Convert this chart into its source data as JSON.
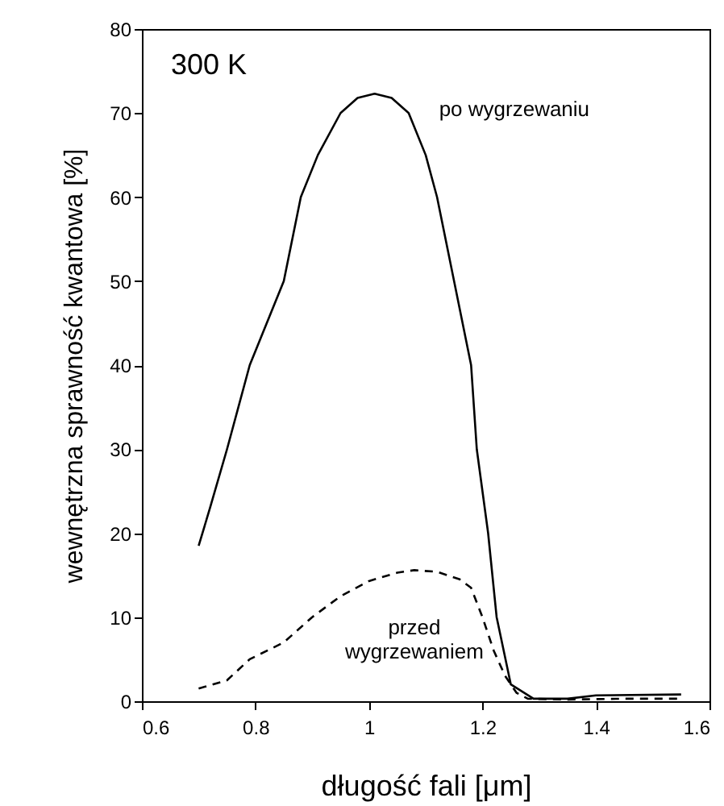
{
  "chart_data": {
    "type": "line",
    "xlabel": "długość fali [μm]",
    "ylabel": "wewnętrzna sprawność kwantowa [%]",
    "annotations": [
      "300 K"
    ],
    "xlim": [
      0.6,
      1.6
    ],
    "xticks": [
      0.6,
      0.8,
      1,
      1.2,
      1.4,
      1.6
    ],
    "ylim": [
      0,
      80
    ],
    "yticks": [
      0,
      10,
      20,
      30,
      40,
      50,
      60,
      70,
      80
    ],
    "grid": false,
    "legend": false,
    "marker": "none",
    "series": [
      {
        "name": "po wygrzewaniu",
        "color": "#000000",
        "line_style": "solid",
        "x": [
          0.7,
          0.72,
          0.75,
          0.79,
          0.85,
          0.88,
          0.91,
          0.95,
          0.98,
          1.01,
          1.04,
          1.07,
          1.1,
          1.12,
          1.15,
          1.18,
          1.19,
          1.21,
          1.225,
          1.25,
          1.29,
          1.35,
          1.4,
          1.55
        ],
        "values": [
          18.5,
          23,
          30,
          40,
          50,
          60,
          65,
          70,
          71.8,
          72.3,
          71.8,
          70,
          65,
          60,
          50,
          40,
          30,
          20,
          10,
          2,
          0.3,
          0.3,
          0.7,
          0.8
        ]
      },
      {
        "name": "przed wygrzewaniem",
        "color": "#000000",
        "line_style": "dashed",
        "x": [
          0.7,
          0.75,
          0.79,
          0.85,
          0.9,
          0.95,
          1.0,
          1.05,
          1.08,
          1.12,
          1.16,
          1.18,
          1.2,
          1.22,
          1.24,
          1.26,
          1.28,
          1.35,
          1.45,
          1.55
        ],
        "values": [
          1.5,
          2.5,
          5,
          7,
          10,
          12.5,
          14.3,
          15.3,
          15.6,
          15.4,
          14.5,
          13.5,
          10,
          6,
          3,
          1,
          0.3,
          0.2,
          0.3,
          0.3
        ]
      }
    ]
  }
}
